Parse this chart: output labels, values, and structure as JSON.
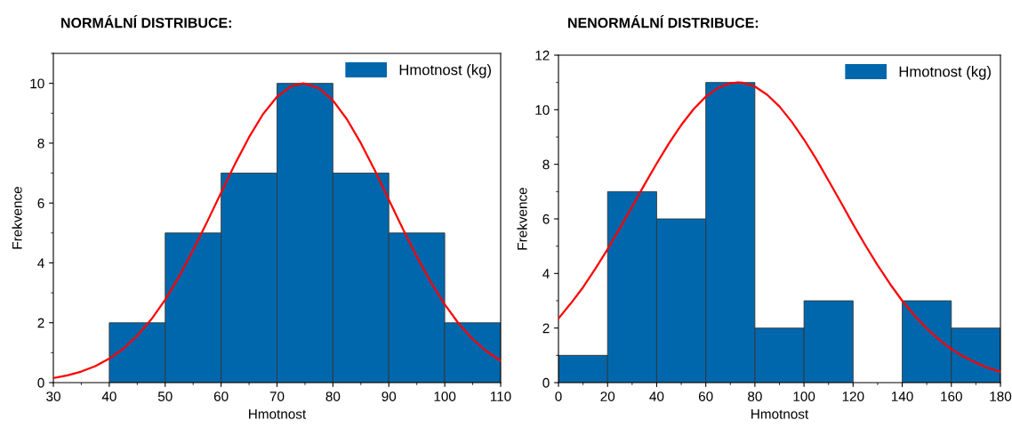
{
  "chart_data": [
    {
      "type": "histogram",
      "title": "NORMÁLNÍ DISTRIBUCE:",
      "xlabel": "Hmotnost",
      "ylabel": "Frekvence",
      "bins": [
        40,
        50,
        60,
        70,
        80,
        90,
        100,
        110
      ],
      "xlim": [
        30,
        110
      ],
      "xticks": [
        30,
        40,
        50,
        60,
        70,
        80,
        90,
        100,
        110
      ],
      "ylim": [
        0,
        11
      ],
      "yticks": [
        0,
        2,
        4,
        6,
        8,
        10
      ],
      "legend": "top right",
      "grid": false,
      "series": [
        {
          "type": "histogram",
          "name": "Hmotnost (kg)",
          "color": "#0067ac",
          "values": [
            2,
            5,
            7,
            10,
            7,
            5,
            2
          ]
        },
        {
          "type": "line",
          "color": "#ff0000",
          "x": [
            30,
            32.5,
            35,
            37.5,
            40,
            42.5,
            45,
            47.5,
            50,
            52.5,
            55,
            57.5,
            60,
            62.5,
            65,
            67.5,
            70,
            72.5,
            74.7,
            77.5,
            80,
            82.5,
            85,
            87.5,
            90,
            92.5,
            95,
            97.5,
            100,
            102.5,
            105,
            107.5,
            110
          ],
          "values": [
            0.15,
            0.24,
            0.37,
            0.55,
            0.8,
            1.13,
            1.57,
            2.11,
            2.77,
            3.55,
            4.43,
            5.37,
            6.35,
            7.31,
            8.2,
            8.97,
            9.55,
            9.9,
            10,
            9.84,
            9.43,
            8.8,
            8.0,
            7.09,
            6.11,
            5.14,
            4.21,
            3.36,
            2.61,
            1.97,
            1.45,
            1.04,
            0.73
          ]
        }
      ]
    },
    {
      "type": "histogram",
      "title": "NENORMÁLNÍ DISTRIBUCE:",
      "xlabel": "Hmotnost",
      "ylabel": "Frekvence",
      "bins": [
        0,
        20,
        40,
        60,
        80,
        100,
        120,
        140,
        160,
        180
      ],
      "xlim": [
        0,
        180
      ],
      "xticks": [
        0,
        20,
        40,
        60,
        80,
        100,
        120,
        140,
        160,
        180
      ],
      "ylim": [
        0,
        12
      ],
      "yticks": [
        0,
        2,
        4,
        6,
        8,
        10,
        12
      ],
      "legend": "top right",
      "grid": false,
      "series": [
        {
          "type": "histogram",
          "name": "Hmotnost (kg)",
          "color": "#0067ac",
          "values": [
            1,
            7,
            6,
            11,
            2,
            3,
            0,
            3,
            2
          ]
        },
        {
          "type": "line",
          "color": "#ff0000",
          "x": [
            0,
            5,
            10,
            15,
            20,
            25,
            30,
            35,
            40,
            45,
            50,
            55,
            60,
            65,
            70,
            73,
            75,
            80,
            85,
            90,
            95,
            100,
            105,
            110,
            115,
            120,
            125,
            130,
            135,
            140,
            145,
            150,
            155,
            160,
            165,
            170,
            175,
            180
          ],
          "values": [
            2.35,
            2.9,
            3.49,
            4.17,
            4.89,
            5.66,
            6.45,
            7.25,
            8.03,
            8.77,
            9.44,
            10.02,
            10.48,
            10.8,
            10.97,
            11,
            10.99,
            10.85,
            10.55,
            10.12,
            9.56,
            8.91,
            8.19,
            7.4,
            6.61,
            5.8,
            5.03,
            4.3,
            3.62,
            3.0,
            2.46,
            1.98,
            1.58,
            1.23,
            0.95,
            0.73,
            0.54,
            0.4
          ]
        }
      ]
    }
  ]
}
